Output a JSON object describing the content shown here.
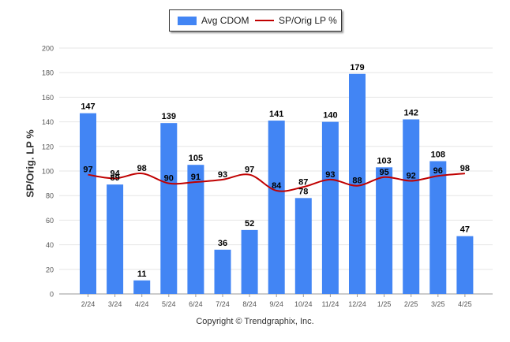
{
  "legend": {
    "bar_label": "Avg CDOM",
    "line_label": "SP/Orig LP %"
  },
  "copyright": "Copyright © Trendgraphix, Inc.",
  "chart_data": {
    "type": "bar",
    "categories": [
      "2/24",
      "3/24",
      "4/24",
      "5/24",
      "6/24",
      "7/24",
      "8/24",
      "9/24",
      "10/24",
      "11/24",
      "12/24",
      "1/25",
      "2/25",
      "3/25",
      "4/25"
    ],
    "series": [
      {
        "name": "Avg CDOM",
        "type": "bar",
        "color": "#4285f4",
        "values": [
          147,
          89,
          11,
          139,
          105,
          36,
          52,
          141,
          78,
          140,
          179,
          103,
          142,
          108,
          47
        ]
      },
      {
        "name": "SP/Orig LP %",
        "type": "line",
        "color": "#c00000",
        "values": [
          97,
          94,
          98,
          90,
          91,
          93,
          97,
          84,
          87,
          93,
          88,
          95,
          92,
          96,
          98
        ]
      }
    ],
    "ylabel": "SP/Orig. LP %",
    "ylim": [
      0,
      200
    ],
    "yticks": [
      0,
      20,
      40,
      60,
      80,
      100,
      120,
      140,
      160,
      180,
      200
    ],
    "grid": true,
    "legend_position": "top-center"
  }
}
